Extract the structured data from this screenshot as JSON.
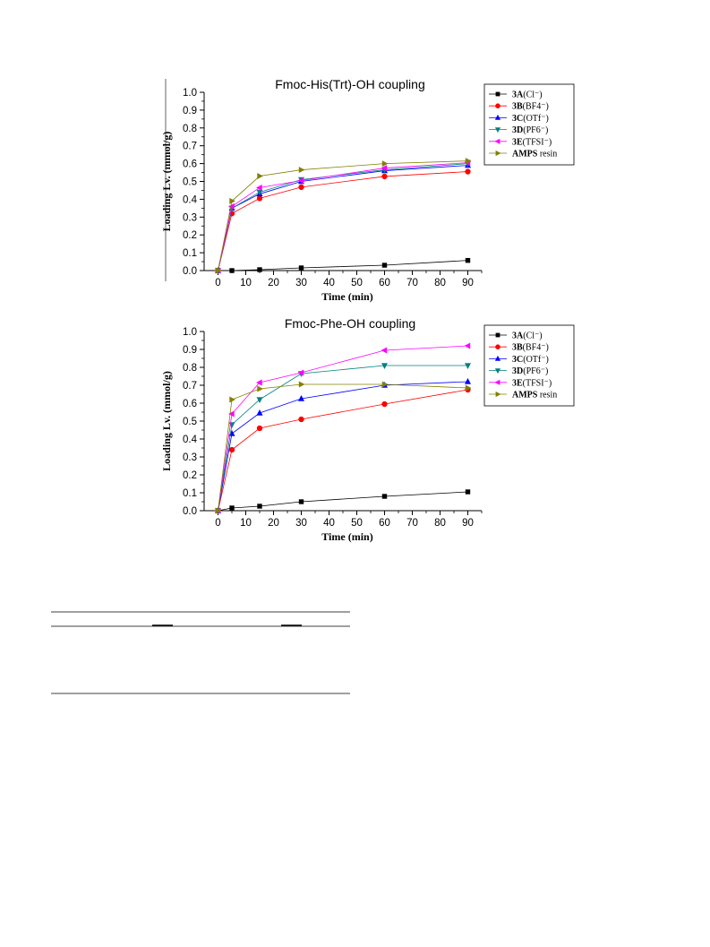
{
  "chart_data": [
    {
      "type": "line",
      "title": "Fmoc-His(Trt)-OH coupling",
      "xlabel": "Time (min)",
      "ylabel": "Loading Lv. (mmol/g)",
      "x": [
        0,
        5,
        15,
        30,
        60,
        90
      ],
      "xlim": [
        -5,
        95
      ],
      "ylim": [
        0,
        1.0
      ],
      "xticks": [
        "0",
        "10",
        "20",
        "30",
        "40",
        "50",
        "60",
        "70",
        "80",
        "90"
      ],
      "yticks": [
        "0.0",
        "0.1",
        "0.2",
        "0.3",
        "0.4",
        "0.5",
        "0.6",
        "0.7",
        "0.8",
        "0.9",
        "1.0"
      ],
      "legend_position": "top-right",
      "series": [
        {
          "name": "3A",
          "suffix": "(Cl⁻)",
          "marker": "square",
          "color": "#000000",
          "values": [
            0,
            0,
            0.005,
            0.015,
            0.03,
            0.057
          ]
        },
        {
          "name": "3B",
          "suffix": "(BF4⁻)",
          "marker": "circle",
          "color": "#ff0000",
          "values": [
            0,
            0.32,
            0.405,
            0.468,
            0.528,
            0.555
          ]
        },
        {
          "name": "3C",
          "suffix": "(OTf⁻)",
          "marker": "triangle-up",
          "color": "#0000ff",
          "values": [
            0,
            0.35,
            0.43,
            0.5,
            0.56,
            0.59
          ]
        },
        {
          "name": "3D",
          "suffix": "(PF6⁻)",
          "marker": "triangle-down",
          "color": "#008080",
          "values": [
            0,
            0.35,
            0.44,
            0.51,
            0.565,
            0.6
          ]
        },
        {
          "name": "3E",
          "suffix": "(TFSI⁻)",
          "marker": "triangle-left",
          "color": "#ff00ff",
          "values": [
            0,
            0.36,
            0.465,
            0.505,
            0.575,
            0.605
          ]
        },
        {
          "name": "AMPS",
          "suffix": " resin",
          "marker": "triangle-right",
          "color": "#808000",
          "values": [
            0,
            0.39,
            0.53,
            0.565,
            0.6,
            0.615
          ]
        }
      ]
    },
    {
      "type": "line",
      "title": "Fmoc-Phe-OH coupling",
      "xlabel": "Time (min)",
      "ylabel": "Loading Lv. (mmol/g)",
      "x": [
        0,
        5,
        15,
        30,
        60,
        90
      ],
      "xlim": [
        -5,
        95
      ],
      "ylim": [
        0,
        1.0
      ],
      "xticks": [
        "0",
        "10",
        "20",
        "30",
        "40",
        "50",
        "60",
        "70",
        "80",
        "90"
      ],
      "yticks": [
        "0.0",
        "0.1",
        "0.2",
        "0.3",
        "0.4",
        "0.5",
        "0.6",
        "0.7",
        "0.8",
        "0.9",
        "1.0"
      ],
      "legend_position": "top-right",
      "series": [
        {
          "name": "3A",
          "suffix": "(Cl⁻)",
          "marker": "square",
          "color": "#000000",
          "values": [
            0,
            0.015,
            0.025,
            0.05,
            0.08,
            0.105
          ]
        },
        {
          "name": "3B",
          "suffix": "(BF4⁻)",
          "marker": "circle",
          "color": "#ff0000",
          "values": [
            0,
            0.34,
            0.46,
            0.51,
            0.595,
            0.675
          ]
        },
        {
          "name": "3C",
          "suffix": "(OTf⁻)",
          "marker": "triangle-up",
          "color": "#0000ff",
          "values": [
            0,
            0.43,
            0.545,
            0.625,
            0.7,
            0.72
          ]
        },
        {
          "name": "3D",
          "suffix": "(PF6⁻)",
          "marker": "triangle-down",
          "color": "#008080",
          "values": [
            0,
            0.48,
            0.62,
            0.765,
            0.81,
            0.81
          ]
        },
        {
          "name": "3E",
          "suffix": "(TFSI⁻)",
          "marker": "triangle-left",
          "color": "#ff00ff",
          "values": [
            0,
            0.54,
            0.715,
            0.77,
            0.895,
            0.92
          ]
        },
        {
          "name": "AMPS",
          "suffix": " resin",
          "marker": "triangle-right",
          "color": "#808000",
          "values": [
            0,
            0.62,
            0.68,
            0.705,
            0.705,
            0.685
          ]
        }
      ]
    }
  ]
}
